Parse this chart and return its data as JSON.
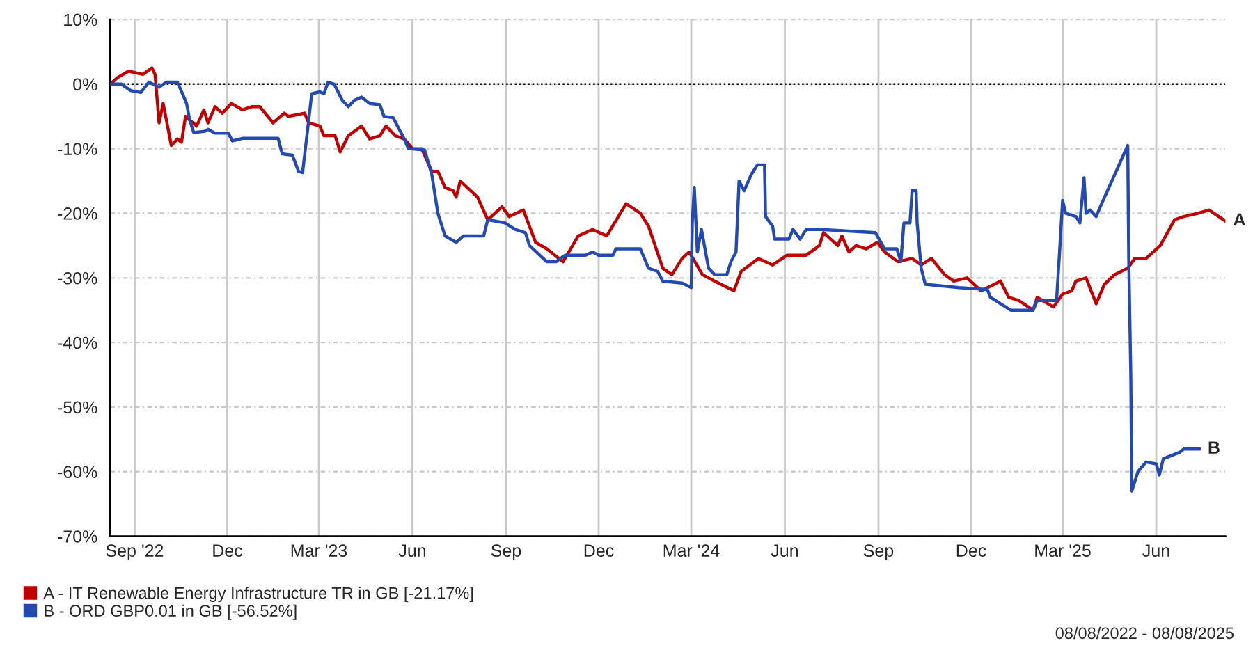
{
  "chart_data": {
    "type": "line",
    "xlim": [
      "2022-08-08",
      "2025-08-08"
    ],
    "xticks": [
      {
        "value": "2022-09-01",
        "label": "Sep '22"
      },
      {
        "value": "2022-12-01",
        "label": "Dec"
      },
      {
        "value": "2023-03-01",
        "label": "Mar '23"
      },
      {
        "value": "2023-06-01",
        "label": "Jun"
      },
      {
        "value": "2023-09-01",
        "label": "Sep"
      },
      {
        "value": "2023-12-01",
        "label": "Dec"
      },
      {
        "value": "2024-03-01",
        "label": "Mar '24"
      },
      {
        "value": "2024-06-01",
        "label": "Jun"
      },
      {
        "value": "2024-09-01",
        "label": "Sep"
      },
      {
        "value": "2024-12-01",
        "label": "Dec"
      },
      {
        "value": "2025-03-01",
        "label": "Mar '25"
      },
      {
        "value": "2025-06-01",
        "label": "Jun"
      }
    ],
    "ylim": [
      -70,
      10
    ],
    "yticks": [
      {
        "value": -70,
        "label": "-70%"
      },
      {
        "value": -60,
        "label": "-60%"
      },
      {
        "value": -50,
        "label": "-50%"
      },
      {
        "value": -40,
        "label": "-40%"
      },
      {
        "value": -30,
        "label": "-30%"
      },
      {
        "value": -20,
        "label": "-20%"
      },
      {
        "value": -10,
        "label": "-10%"
      },
      {
        "value": 0,
        "label": "0%"
      },
      {
        "value": 10,
        "label": "10%"
      }
    ],
    "grid": true,
    "legend": "bottom left",
    "ref_lines": [
      {
        "axis": "y",
        "value": 0,
        "color": "#000000",
        "line_style": "dotted"
      }
    ],
    "annotations": [
      {
        "text": "A",
        "x": "2025-08-08",
        "y": -21.2
      },
      {
        "text": "B",
        "x": "2025-07-14",
        "y": -56.5
      },
      "08/08/2022 - 08/08/2025"
    ],
    "series": [
      {
        "name": "A - IT Renewable Energy Infrastructure TR in GB [-21.17%]",
        "color": "#c00000",
        "x": [
          "2022-08-08",
          "2022-08-15",
          "2022-08-26",
          "2022-09-09",
          "2022-09-18",
          "2022-09-21",
          "2022-09-25",
          "2022-09-29",
          "2022-10-07",
          "2022-10-13",
          "2022-10-17",
          "2022-10-21",
          "2022-11-01",
          "2022-11-08",
          "2022-11-12",
          "2022-11-19",
          "2022-11-26",
          "2022-12-05",
          "2022-12-16",
          "2022-12-25",
          "2023-01-02",
          "2023-01-15",
          "2023-01-26",
          "2023-01-30",
          "2023-02-15",
          "2023-02-19",
          "2023-03-02",
          "2023-03-06",
          "2023-03-17",
          "2023-03-22",
          "2023-03-30",
          "2023-04-12",
          "2023-04-20",
          "2023-04-30",
          "2023-05-06",
          "2023-05-15",
          "2023-05-24",
          "2023-06-01",
          "2023-06-10",
          "2023-06-20",
          "2023-06-26",
          "2023-07-03",
          "2023-07-11",
          "2023-07-14",
          "2023-07-18",
          "2023-08-04",
          "2023-08-14",
          "2023-08-28",
          "2023-09-04",
          "2023-09-18",
          "2023-09-30",
          "2023-10-11",
          "2023-10-27",
          "2023-11-11",
          "2023-11-25",
          "2023-12-09",
          "2023-12-28",
          "2024-01-11",
          "2024-01-19",
          "2024-02-02",
          "2024-02-11",
          "2024-02-21",
          "2024-02-28",
          "2024-03-12",
          "2024-03-24",
          "2024-04-12",
          "2024-04-19",
          "2024-05-06",
          "2024-05-20",
          "2024-06-03",
          "2024-06-22",
          "2024-07-05",
          "2024-07-09",
          "2024-07-23",
          "2024-07-27",
          "2024-08-03",
          "2024-08-10",
          "2024-08-20",
          "2024-08-31",
          "2024-09-07",
          "2024-09-20",
          "2024-10-04",
          "2024-10-13",
          "2024-10-23",
          "2024-11-05",
          "2024-11-14",
          "2024-11-27",
          "2024-12-11",
          "2024-12-30",
          "2025-01-07",
          "2025-01-17",
          "2025-01-31",
          "2025-02-04",
          "2025-02-20",
          "2025-03-01",
          "2025-03-10",
          "2025-03-14",
          "2025-03-24",
          "2025-04-03",
          "2025-04-11",
          "2025-04-21",
          "2025-05-04",
          "2025-05-11",
          "2025-05-22",
          "2025-06-05",
          "2025-06-19",
          "2025-06-28",
          "2025-07-12",
          "2025-07-23",
          "2025-08-08"
        ],
        "values": [
          0,
          1,
          2,
          1.5,
          2.5,
          1.5,
          -6,
          -3,
          -9.5,
          -8.5,
          -9,
          -5,
          -6.5,
          -4,
          -6,
          -3.5,
          -4.5,
          -3,
          -4,
          -3.5,
          -3.5,
          -6,
          -4.5,
          -5,
          -4.5,
          -6,
          -6.5,
          -8,
          -8,
          -10.5,
          -8,
          -6.5,
          -8.5,
          -8,
          -6.5,
          -8,
          -8.5,
          -10,
          -10,
          -13.5,
          -13.5,
          -16,
          -16.5,
          -17.5,
          -15,
          -17.5,
          -21,
          -19,
          -20.5,
          -19.5,
          -24.5,
          -25.5,
          -27.5,
          -23.5,
          -22.5,
          -23.5,
          -18.5,
          -20,
          -22,
          -28.5,
          -29.5,
          -27,
          -26,
          -29.5,
          -30.5,
          -32,
          -29,
          -27,
          -28,
          -26.5,
          -26.5,
          -25,
          -23,
          -25,
          -23.5,
          -26,
          -25,
          -25.5,
          -24.5,
          -26,
          -27.5,
          -27,
          -28,
          -27,
          -29.5,
          -30.5,
          -30,
          -32,
          -30.5,
          -33,
          -33.5,
          -35,
          -33,
          -34.5,
          -32.5,
          -32,
          -30.5,
          -30,
          -34,
          -31,
          -29.5,
          -28.5,
          -27,
          -27,
          -25,
          -21,
          -20.5,
          -20,
          -19.5,
          -21.2
        ]
      },
      {
        "name": "B - ORD GBP0.01 in GB [-56.52%]",
        "color": "#2449b0",
        "x": [
          "2022-08-08",
          "2022-08-19",
          "2022-08-28",
          "2022-09-07",
          "2022-09-15",
          "2022-09-25",
          "2022-10-02",
          "2022-10-13",
          "2022-10-18",
          "2022-10-22",
          "2022-10-25",
          "2022-10-29",
          "2022-11-09",
          "2022-11-12",
          "2022-11-19",
          "2022-12-02",
          "2022-12-06",
          "2022-12-16",
          "2023-01-20",
          "2023-01-24",
          "2023-02-03",
          "2023-02-09",
          "2023-02-13",
          "2023-02-18",
          "2023-02-22",
          "2023-03-02",
          "2023-03-06",
          "2023-03-10",
          "2023-03-16",
          "2023-03-24",
          "2023-03-30",
          "2023-04-05",
          "2023-04-12",
          "2023-04-20",
          "2023-04-30",
          "2023-05-04",
          "2023-05-13",
          "2023-05-23",
          "2023-05-28",
          "2023-06-13",
          "2023-06-20",
          "2023-06-26",
          "2023-07-03",
          "2023-07-14",
          "2023-07-21",
          "2023-08-10",
          "2023-08-14",
          "2023-08-31",
          "2023-09-10",
          "2023-09-20",
          "2023-09-24",
          "2023-10-11",
          "2023-10-20",
          "2023-10-29",
          "2023-11-18",
          "2023-11-25",
          "2023-12-01",
          "2023-12-15",
          "2023-12-18",
          "2024-01-11",
          "2024-01-19",
          "2024-01-28",
          "2024-02-02",
          "2024-02-21",
          "2024-03-01",
          "2024-03-02",
          "2024-03-04",
          "2024-03-07",
          "2024-03-11",
          "2024-03-18",
          "2024-03-24",
          "2024-04-05",
          "2024-04-09",
          "2024-04-14",
          "2024-04-17",
          "2024-04-22",
          "2024-04-29",
          "2024-05-05",
          "2024-05-12",
          "2024-05-13",
          "2024-05-20",
          "2024-05-22",
          "2024-06-05",
          "2024-06-09",
          "2024-06-16",
          "2024-06-22",
          "2024-07-07",
          "2024-08-29",
          "2024-09-07",
          "2024-09-19",
          "2024-09-23",
          "2024-09-26",
          "2024-10-02",
          "2024-10-04",
          "2024-10-08",
          "2024-10-09",
          "2024-10-13",
          "2024-10-17",
          "2024-11-19",
          "2024-12-17",
          "2024-12-20",
          "2025-01-09",
          "2025-01-31",
          "2025-02-04",
          "2025-02-23",
          "2025-02-26",
          "2025-03-01",
          "2025-03-04",
          "2025-03-14",
          "2025-03-18",
          "2025-03-22",
          "2025-03-24",
          "2025-03-28",
          "2025-04-03",
          "2025-04-07",
          "2025-05-04",
          "2025-05-05",
          "2025-05-07",
          "2025-05-08",
          "2025-05-14",
          "2025-05-22",
          "2025-06-01",
          "2025-06-04",
          "2025-06-08",
          "2025-06-24",
          "2025-06-28",
          "2025-07-14"
        ],
        "values": [
          0,
          0,
          -1,
          -1.3,
          0.3,
          -0.5,
          0.3,
          0.3,
          -1.5,
          -3,
          -5.5,
          -7.5,
          -7.3,
          -7,
          -7.6,
          -7.6,
          -8.8,
          -8.4,
          -8.4,
          -10.8,
          -11,
          -13.5,
          -13.7,
          -7,
          -1.5,
          -1.2,
          -1.5,
          0.3,
          0,
          -2.5,
          -3.5,
          -2.5,
          -2,
          -3,
          -3.2,
          -5,
          -5.2,
          -8.2,
          -10,
          -10.2,
          -14,
          -20,
          -23.5,
          -24.5,
          -23.5,
          -23.5,
          -21,
          -21.5,
          -22.5,
          -23,
          -25,
          -27.5,
          -27.5,
          -26.5,
          -26.5,
          -26,
          -26.5,
          -26.5,
          -25.5,
          -25.5,
          -28.5,
          -29,
          -30.5,
          -30.8,
          -31.5,
          -21.5,
          -16,
          -26,
          -22.5,
          -28.5,
          -29.5,
          -29.5,
          -27.5,
          -26,
          -15,
          -16.5,
          -14,
          -12.5,
          -12.5,
          -20.5,
          -22,
          -24,
          -24,
          -22.5,
          -24,
          -22.5,
          -22.5,
          -23,
          -25.5,
          -25.5,
          -27.5,
          -21.5,
          -21.5,
          -16.5,
          -16.5,
          -21.5,
          -28.5,
          -31,
          -31.5,
          -31.8,
          -33,
          -35,
          -35,
          -33.5,
          -33.5,
          -26,
          -18,
          -20,
          -20.5,
          -21.5,
          -14.5,
          -20,
          -19.5,
          -20.5,
          -19,
          -9.5,
          -27,
          -45,
          -63,
          -60,
          -58.5,
          -58.8,
          -60.5,
          -58,
          -57,
          -56.5,
          -56.5
        ]
      }
    ]
  }
}
